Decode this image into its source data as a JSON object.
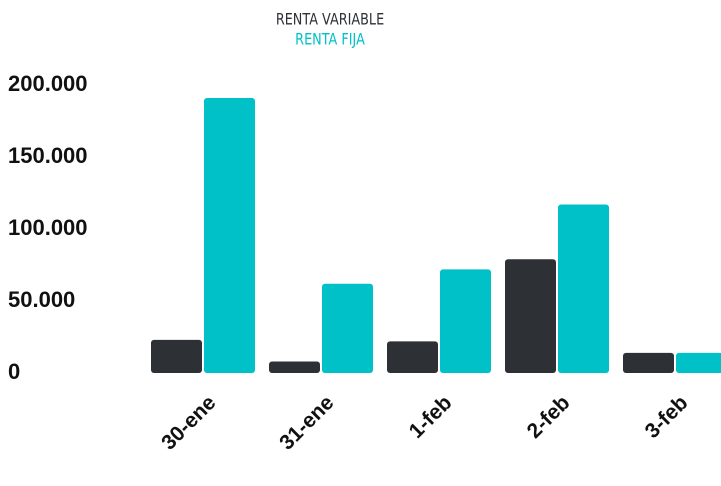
{
  "chart_data": {
    "type": "bar",
    "categories": [
      "30-ene",
      "31-ene",
      "1-feb",
      "2-feb",
      "3-feb"
    ],
    "series": [
      {
        "name": "RENTA VARIABLE",
        "color": "#2d3135",
        "values": [
          23000,
          8000,
          22000,
          79000,
          14000
        ]
      },
      {
        "name": "RENTA FIJA",
        "color": "#00c0c8",
        "values": [
          191000,
          62000,
          72000,
          117000,
          14000
        ]
      }
    ],
    "ylim": [
      0,
      200000
    ],
    "yticks": [
      0,
      {
        "value": 50000,
        "label": "50.000"
      },
      {
        "value": 100000,
        "label": "100.000"
      },
      {
        "value": 150000,
        "label": "150.000"
      },
      {
        "value": 200000,
        "label": "200.000"
      }
    ],
    "grid": false,
    "legend": "top"
  }
}
